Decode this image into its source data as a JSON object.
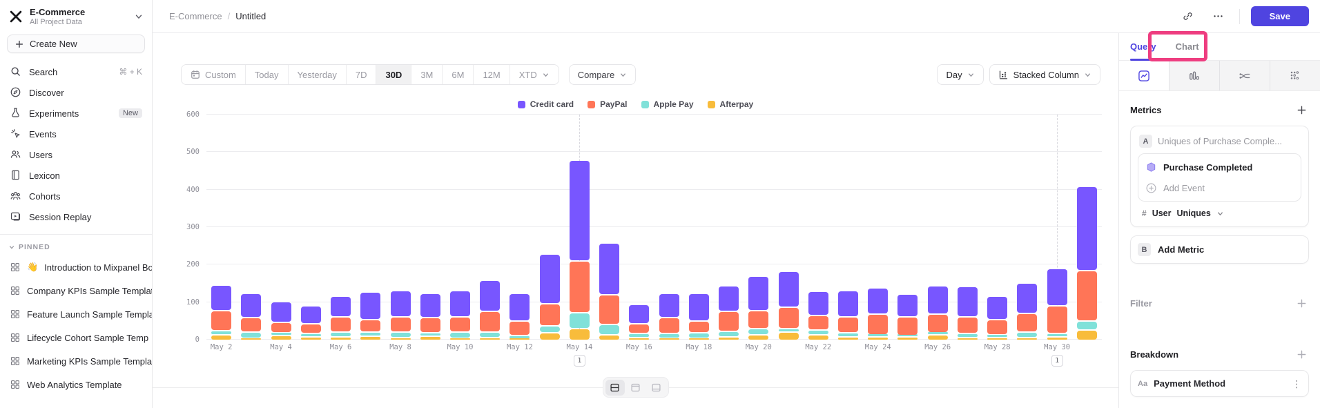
{
  "project": {
    "name": "E-Commerce",
    "subtitle": "All Project Data"
  },
  "sidebar": {
    "create_new_label": "Create New",
    "items": [
      {
        "id": "search",
        "label": "Search",
        "shortcut": "⌘ + K"
      },
      {
        "id": "discover",
        "label": "Discover"
      },
      {
        "id": "experiments",
        "label": "Experiments",
        "badge": "New"
      },
      {
        "id": "events",
        "label": "Events"
      },
      {
        "id": "users",
        "label": "Users"
      },
      {
        "id": "lexicon",
        "label": "Lexicon"
      },
      {
        "id": "cohorts",
        "label": "Cohorts"
      },
      {
        "id": "session-replay",
        "label": "Session Replay"
      }
    ],
    "pinned_header": "PINNED",
    "pinned": [
      {
        "emoji": "👋",
        "label": "Introduction to Mixpanel Bo"
      },
      {
        "label": "Company KPIs Sample Templat"
      },
      {
        "label": "Feature Launch Sample Templa"
      },
      {
        "label": "Lifecycle Cohort Sample Temp"
      },
      {
        "label": "Marketing KPIs Sample Templat"
      },
      {
        "label": "Web Analytics Template"
      }
    ]
  },
  "header": {
    "breadcrumb_project": "E-Commerce",
    "breadcrumb_separator": "/",
    "breadcrumb_page": "Untitled",
    "save_label": "Save"
  },
  "toolbar": {
    "date_ranges": [
      "Custom",
      "Today",
      "Yesterday",
      "7D",
      "30D",
      "3M",
      "6M",
      "12M",
      "XTD"
    ],
    "active_range": "30D",
    "compare_label": "Compare",
    "granularity_label": "Day",
    "chart_type_label": "Stacked Column"
  },
  "right_panel": {
    "tabs": [
      {
        "label": "Query",
        "active": true
      },
      {
        "label": "Chart",
        "active": false
      }
    ],
    "metrics": {
      "title": "Metrics",
      "row_letter": "A",
      "row_placeholder": "Uniques of Purchase Comple...",
      "event_name": "Purchase Completed",
      "add_event_label": "Add Event",
      "agg_symbol": "#",
      "agg_entity": "User",
      "agg_type": "Uniques",
      "add_metric_letter": "B",
      "add_metric_label": "Add Metric"
    },
    "filter_title": "Filter",
    "breakdown_title": "Breakdown",
    "breakdown_item": {
      "type_tag": "Aa",
      "label": "Payment Method"
    }
  },
  "chart_data": {
    "type": "bar",
    "stacked": true,
    "title": "",
    "xlabel": "",
    "ylabel": "",
    "ylim": [
      0,
      600
    ],
    "yticks": [
      0,
      100,
      200,
      300,
      400,
      500,
      600
    ],
    "grid": true,
    "legend_position": "top-center",
    "categories": [
      "May 2",
      "May 3",
      "May 4",
      "May 5",
      "May 6",
      "May 7",
      "May 8",
      "May 9",
      "May 10",
      "May 11",
      "May 12",
      "May 13",
      "May 14",
      "May 15",
      "May 16",
      "May 17",
      "May 18",
      "May 19",
      "May 20",
      "May 21",
      "May 22",
      "May 23",
      "May 24",
      "May 25",
      "May 26",
      "May 27",
      "May 28",
      "May 29",
      "May 30",
      "May 31"
    ],
    "x_tick_step": 2,
    "stack_order_bottom_to_top": [
      "Afterpay",
      "Apple Pay",
      "PayPal",
      "Credit card"
    ],
    "series": [
      {
        "name": "Credit card",
        "color": "#7856FF",
        "values": [
          68,
          65,
          55,
          47,
          56,
          73,
          71,
          65,
          71,
          82,
          73,
          132,
          268,
          137,
          50,
          65,
          74,
          68,
          92,
          96,
          64,
          69,
          70,
          60,
          75,
          81,
          63,
          81,
          100,
          225
        ]
      },
      {
        "name": "PayPal",
        "color": "#FF7557",
        "values": [
          55,
          37,
          27,
          27,
          40,
          33,
          40,
          39,
          40,
          56,
          40,
          60,
          138,
          80,
          26,
          42,
          31,
          53,
          48,
          56,
          38,
          43,
          55,
          50,
          50,
          44,
          40,
          50,
          74,
          135
        ]
      },
      {
        "name": "Apple Pay",
        "color": "#80E1D9",
        "values": [
          10,
          18,
          8,
          8,
          12,
          11,
          14,
          10,
          16,
          14,
          8,
          18,
          42,
          28,
          11,
          13,
          15,
          14,
          17,
          10,
          13,
          10,
          5,
          3,
          5,
          10,
          7,
          14,
          8,
          23
        ]
      },
      {
        "name": "Afterpay",
        "color": "#F8BC3B",
        "values": [
          15,
          5,
          13,
          10,
          10,
          11,
          8,
          11,
          6,
          8,
          4,
          20,
          32,
          14,
          8,
          5,
          5,
          10,
          15,
          22,
          15,
          10,
          10,
          10,
          15,
          8,
          8,
          8,
          10,
          28
        ]
      }
    ],
    "annotations": [
      {
        "category": "May 14",
        "label": "1"
      },
      {
        "category": "May 30",
        "label": "1"
      }
    ]
  },
  "ui_annotation": {
    "highlight_color": "#ee3d80",
    "highlighted_element": "Chart tab"
  }
}
